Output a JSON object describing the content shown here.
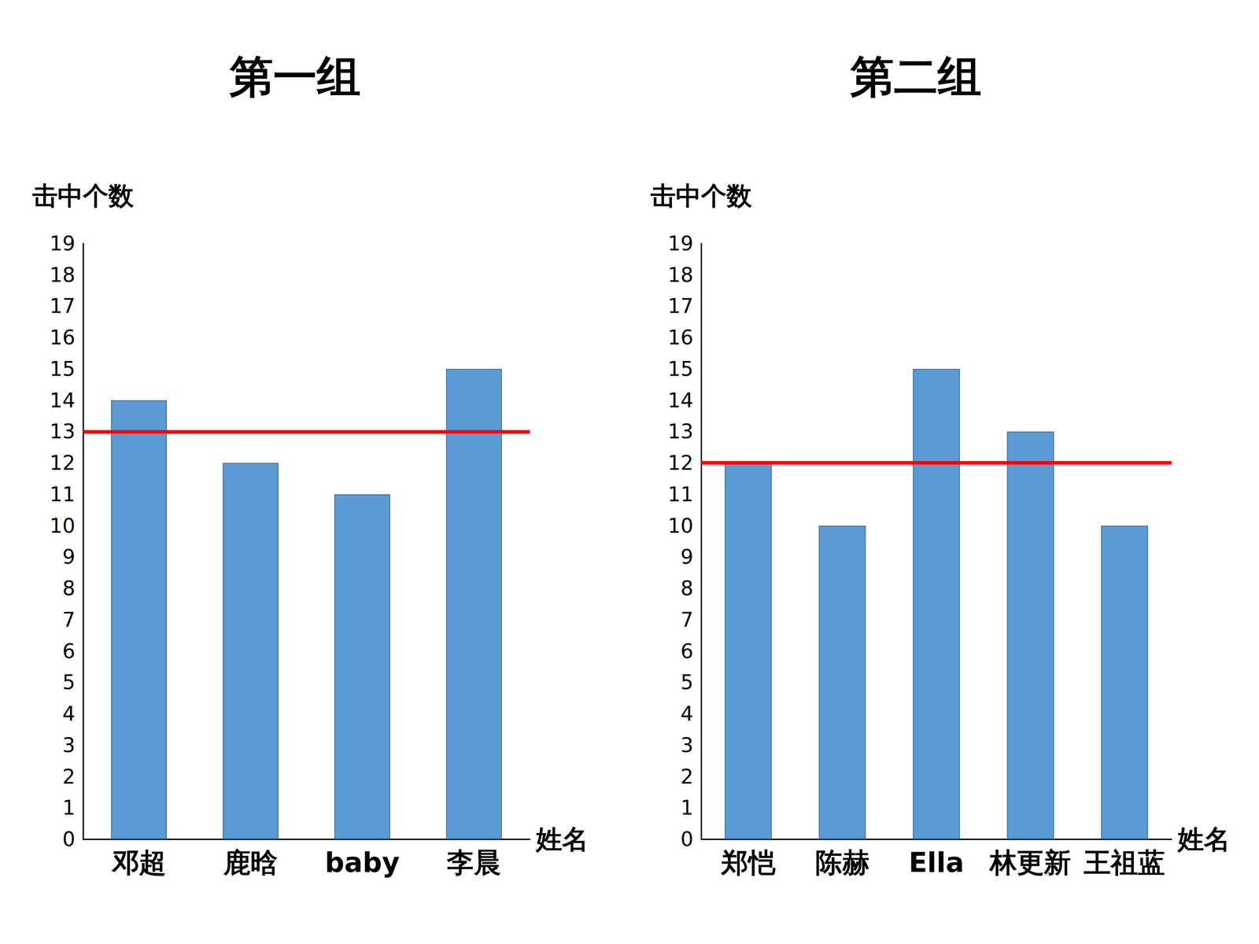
{
  "chart_data": [
    {
      "type": "bar",
      "title": "第一组",
      "x_label": "姓名",
      "y_label": "击中个数",
      "categories": [
        "邓超",
        "鹿晗",
        "baby",
        "李晨"
      ],
      "values": [
        14,
        12,
        11,
        15
      ],
      "color": "#5b9bd5",
      "reference_line": 13,
      "ylim": [
        0,
        19
      ],
      "yticks": [
        0,
        1,
        2,
        3,
        4,
        5,
        6,
        7,
        8,
        9,
        10,
        11,
        12,
        13,
        14,
        15,
        16,
        17,
        18,
        19
      ],
      "grid": false
    },
    {
      "type": "bar",
      "title": "第二组",
      "x_label": "姓名",
      "y_label": "击中个数",
      "categories": [
        "郑恺",
        "陈赫",
        "Ella",
        "林更新",
        "王祖蓝"
      ],
      "values": [
        12,
        10,
        15,
        13,
        10
      ],
      "color": "#5b9bd5",
      "reference_line": 12,
      "ylim": [
        0,
        19
      ],
      "yticks": [
        0,
        1,
        2,
        3,
        4,
        5,
        6,
        7,
        8,
        9,
        10,
        11,
        12,
        13,
        14,
        15,
        16,
        17,
        18,
        19
      ],
      "grid": false
    }
  ]
}
